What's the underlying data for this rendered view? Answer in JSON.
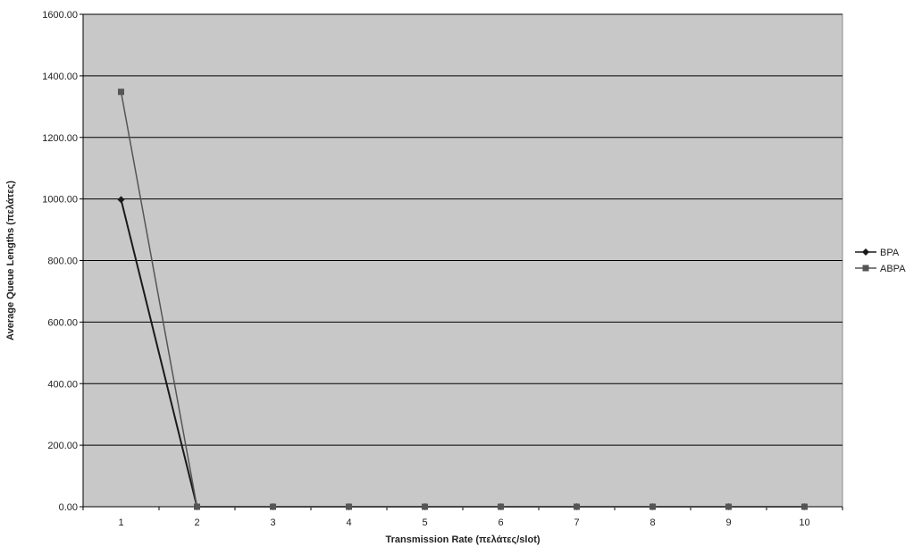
{
  "chart_data": {
    "type": "line",
    "title": "",
    "xlabel": "Transmission Rate (πελάτες/slot)",
    "ylabel": "Average Queue Lengths (πελάτες)",
    "categories": [
      "1",
      "2",
      "3",
      "4",
      "5",
      "6",
      "7",
      "8",
      "9",
      "10"
    ],
    "ylim": [
      0,
      1600
    ],
    "yticks": [
      "0.00",
      "200.00",
      "400.00",
      "600.00",
      "800.00",
      "1000.00",
      "1200.00",
      "1400.00",
      "1600.00"
    ],
    "grid": "horizontal",
    "legend_position": "right",
    "series": [
      {
        "name": "BPA",
        "marker": "diamond",
        "color": "#1a1a1a",
        "values": [
          998,
          0,
          0,
          0,
          0,
          0,
          0,
          0,
          0,
          0
        ]
      },
      {
        "name": "ABPA",
        "marker": "square",
        "color": "#555555",
        "values": [
          1348,
          0,
          0,
          0,
          0,
          0,
          0,
          0,
          0,
          0
        ]
      }
    ],
    "plot_background": "#c8c8c8"
  }
}
